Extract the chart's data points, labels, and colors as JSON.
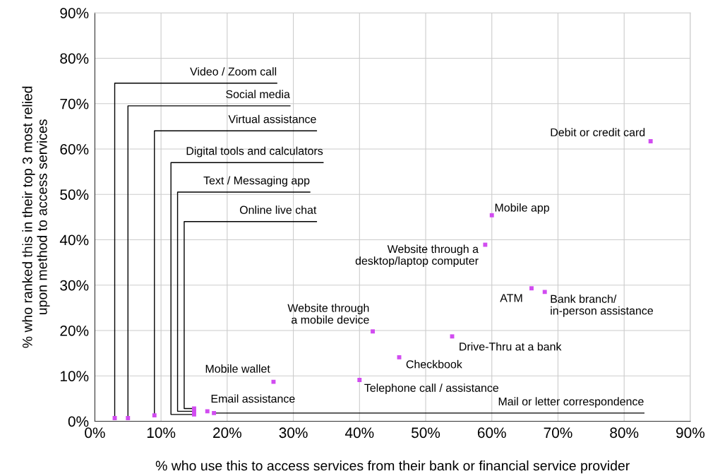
{
  "chart_data": {
    "type": "scatter",
    "xlabel": "% who use this to access services from their bank or financial service provider",
    "ylabel": "% who ranked this in their top 3 most relied\nupon method to access services",
    "series": [
      {
        "color": "#d14cf0",
        "x": [
          3,
          5,
          9,
          15,
          15,
          15,
          17,
          18,
          27,
          40,
          42,
          46,
          54,
          59,
          60,
          66,
          68,
          84
        ],
        "values": [
          0.7,
          0.7,
          1.3,
          1.5,
          2.2,
          2.8,
          2.2,
          1.8,
          8.7,
          9.1,
          19.8,
          14.1,
          18.7,
          38.9,
          45.4,
          29.3,
          28.5,
          61.7
        ]
      }
    ],
    "annotations": [
      {
        "text": "Video / Zoom call",
        "x": 3,
        "y": 0.7
      },
      {
        "text": "Social media",
        "x": 5,
        "y": 0.7
      },
      {
        "text": "Virtual assistance",
        "x": 9,
        "y": 1.3
      },
      {
        "text": "Digital tools and calculators",
        "x": 15,
        "y": 1.5
      },
      {
        "text": "Text / Messaging app",
        "x": 15,
        "y": 2.2
      },
      {
        "text": "Online live chat",
        "x": 15,
        "y": 2.8
      },
      {
        "text": "Email assistance",
        "x": 17,
        "y": 2.2
      },
      {
        "text": "Mail or letter correspondence",
        "x": 18,
        "y": 1.8
      },
      {
        "text": "Mobile wallet",
        "x": 27,
        "y": 8.7
      },
      {
        "text": "Telephone call / assistance",
        "x": 40,
        "y": 9.1
      },
      {
        "text": "Website through\na mobile device",
        "x": 42,
        "y": 19.8
      },
      {
        "text": "Checkbook",
        "x": 46,
        "y": 14.1
      },
      {
        "text": "Drive-Thru at a bank",
        "x": 54,
        "y": 18.7
      },
      {
        "text": "Website through a\ndesktop/laptop computer",
        "x": 59,
        "y": 38.9
      },
      {
        "text": "Mobile app",
        "x": 60,
        "y": 45.4
      },
      {
        "text": "ATM",
        "x": 66,
        "y": 29.3
      },
      {
        "text": "Bank branch/\nin-person assistance",
        "x": 68,
        "y": 28.5
      },
      {
        "text": "Debit or credit card",
        "x": 84,
        "y": 61.7
      }
    ],
    "xlim": [
      0,
      90
    ],
    "ylim": [
      0,
      90
    ],
    "xticks": [
      {
        "value": 0,
        "label": "0%"
      },
      {
        "value": 10,
        "label": "10%"
      },
      {
        "value": 20,
        "label": "20%"
      },
      {
        "value": 30,
        "label": "30%"
      },
      {
        "value": 40,
        "label": "40%"
      },
      {
        "value": 50,
        "label": "50%"
      },
      {
        "value": 60,
        "label": "60%"
      },
      {
        "value": 70,
        "label": "70%"
      },
      {
        "value": 80,
        "label": "80%"
      },
      {
        "value": 90,
        "label": "90%"
      }
    ],
    "yticks": [
      {
        "value": 0,
        "label": "0%"
      },
      {
        "value": 10,
        "label": "10%"
      },
      {
        "value": 20,
        "label": "20%"
      },
      {
        "value": 30,
        "label": "30%"
      },
      {
        "value": 40,
        "label": "40%"
      },
      {
        "value": 50,
        "label": "50%"
      },
      {
        "value": 60,
        "label": "60%"
      },
      {
        "value": 70,
        "label": "70%"
      },
      {
        "value": 80,
        "label": "80%"
      },
      {
        "value": 90,
        "label": "90%"
      }
    ],
    "grid": true,
    "marker": "square"
  }
}
